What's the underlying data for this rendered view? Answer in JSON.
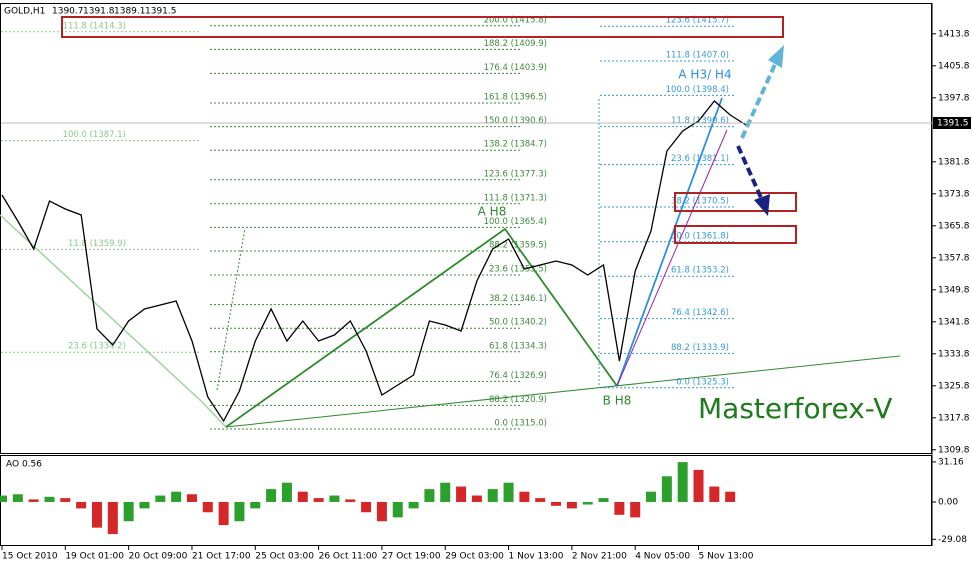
{
  "chart_data": {
    "type": "line",
    "title": "GOLD,H1",
    "ohlc": [
      1390.7,
      1391.8,
      1389.1,
      1391.5
    ],
    "categories": [
      "15 Oct 2010",
      null,
      null,
      null,
      "19 Oct 01:00",
      null,
      null,
      null,
      "20 Oct 09:00",
      null,
      null,
      null,
      "21 Oct 17:00",
      null,
      null,
      null,
      "25 Oct 03:00",
      null,
      null,
      null,
      "26 Oct 11:00",
      null,
      null,
      null,
      "27 Oct 19:00",
      null,
      null,
      null,
      "29 Oct 03:00",
      null,
      null,
      null,
      "1 Nov 13:00",
      null,
      null,
      null,
      "2 Nov 21:00",
      null,
      null,
      null,
      "4 Nov 05:00",
      null,
      null,
      null,
      "5 Nov 13:00",
      null,
      null,
      null
    ],
    "values": [
      1373.5,
      1367,
      1360,
      1372,
      1370,
      1368.5,
      1340,
      1336,
      1342,
      1345,
      1346,
      1347,
      1337,
      1323,
      1317,
      1324.5,
      1337,
      1345,
      1337,
      1342,
      1337,
      1338.5,
      1342,
      1334.5,
      1323.5,
      1326,
      1328.5,
      1342,
      1341,
      1339.5,
      1352,
      1360,
      1362.5,
      1355,
      1356,
      1357,
      1356,
      1353.5,
      1356,
      1332,
      1354.5,
      1364.5,
      1384.5,
      1389.5,
      1392,
      1397,
      1393.5,
      1391
    ],
    "color": "#000000",
    "ylim": [
      1309,
      1421
    ],
    "yticks": [
      1309.8,
      1317.8,
      1325.8,
      1333.8,
      1341.8,
      1349.8,
      1357.8,
      1365.8,
      1373.8,
      1381.8,
      1397.8,
      1405.8,
      1413.8
    ],
    "last_price": 1391.5,
    "fib_sets": [
      {
        "color": "#8cc88c",
        "levels": [
          {
            "label": "111.8 (1414.3)",
            "value": 1414.3
          },
          {
            "label": "100.0 (1387.1)",
            "value": 1387.1
          },
          {
            "label": "11.8 (1359.9)",
            "value": 1359.9
          },
          {
            "label": "23.6 (1334.2)",
            "value": 1334.2
          }
        ]
      },
      {
        "color": "#3f8a3f",
        "levels": [
          {
            "label": "200.0 (1415.8)",
            "value": 1415.8
          },
          {
            "label": "188.2 (1409.9)",
            "value": 1409.9
          },
          {
            "label": "176.4 (1403.9)",
            "value": 1403.9
          },
          {
            "label": "161.8 (1396.5)",
            "value": 1396.5
          },
          {
            "label": "150.0 (1390.6)",
            "value": 1390.6
          },
          {
            "label": "138.2 (1384.7)",
            "value": 1384.7
          },
          {
            "label": "123.6 (1377.3)",
            "value": 1377.3
          },
          {
            "label": "111.8 (1371.3)",
            "value": 1371.3
          },
          {
            "label": "100.0 (1365.4)",
            "value": 1365.4
          },
          {
            "label": "88.2 (1359.5)",
            "value": 1359.5
          },
          {
            "label": "23.6 (1353.5)",
            "value": 1353.5
          },
          {
            "label": "38.2 (1346.1)",
            "value": 1346.1
          },
          {
            "label": "50.0 (1340.2)",
            "value": 1340.2
          },
          {
            "label": "61.8 (1334.3)",
            "value": 1334.3
          },
          {
            "label": "76.4 (1326.9)",
            "value": 1326.9
          },
          {
            "label": "88.2 (1320.9)",
            "value": 1320.9
          },
          {
            "label": "0.0 (1315.0)",
            "value": 1315.0
          }
        ]
      },
      {
        "color": "#3a9ad9",
        "levels": [
          {
            "label": "123.6 (1415.7)",
            "value": 1415.7
          },
          {
            "label": "111.8 (1407.0)",
            "value": 1407.0
          },
          {
            "label": "100.0 (1398.4)",
            "value": 1398.4
          },
          {
            "label": "11.8 (1390.6)",
            "value": 1390.6
          },
          {
            "label": "23.6 (1381.1)",
            "value": 1381.1
          },
          {
            "label": "38.2 (1370.5)",
            "value": 1370.5
          },
          {
            "label": "50.0 (1361.8)",
            "value": 1361.8
          },
          {
            "label": "61.8 (1353.2)",
            "value": 1353.2
          },
          {
            "label": "76.4 (1342.6)",
            "value": 1342.6
          },
          {
            "label": "88.2 (1333.9)",
            "value": 1333.9
          },
          {
            "label": "0.0 (1325.3)",
            "value": 1325.3
          }
        ]
      }
    ],
    "annotations": [
      "A H8",
      "B H8",
      "A H3/ H4"
    ],
    "watermark": "Masterforex-V",
    "ao": {
      "title": "AO 0.56",
      "up_color": "#2ca02c",
      "down_color": "#d62728",
      "ylim": [
        -33.5,
        35
      ],
      "yticks": [
        31.16,
        {
          "value": 0,
          "label": "0.00"
        },
        -29.08
      ],
      "values": [
        5,
        6,
        2,
        4,
        3,
        -5,
        -20,
        -25,
        -15,
        -5,
        5,
        8,
        6,
        -8,
        -18,
        -15,
        -5,
        10,
        15,
        8,
        3,
        5,
        2,
        -8,
        -15,
        -12,
        -5,
        10,
        15,
        12,
        5,
        10,
        15,
        8,
        3,
        -3,
        -5,
        -2,
        3,
        -10,
        -12,
        8,
        20,
        31,
        25,
        12,
        8,
        0
      ]
    }
  }
}
